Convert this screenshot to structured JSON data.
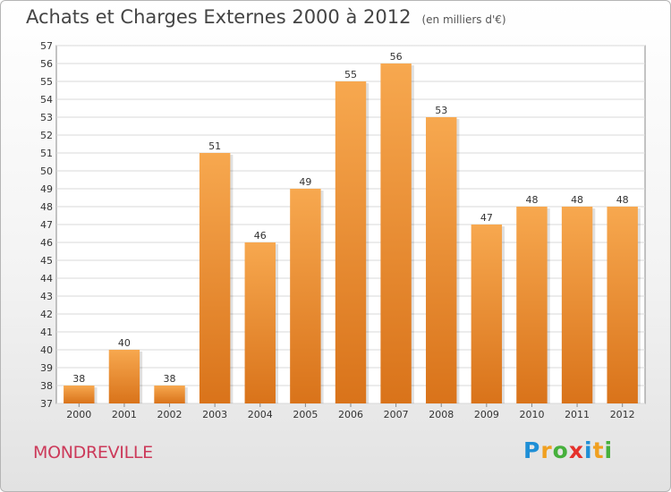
{
  "chart_data": {
    "type": "bar",
    "title": "Achats et Charges Externes 2000 à 2012",
    "subtitle": "(en milliers d'€)",
    "categories": [
      "2000",
      "2001",
      "2002",
      "2003",
      "2004",
      "2005",
      "2006",
      "2007",
      "2008",
      "2009",
      "2010",
      "2011",
      "2012"
    ],
    "values": [
      38,
      40,
      38,
      51,
      46,
      49,
      55,
      56,
      53,
      47,
      48,
      48,
      48
    ],
    "ylim": [
      37,
      57
    ],
    "yticks": [
      37,
      38,
      39,
      40,
      41,
      42,
      43,
      44,
      45,
      46,
      47,
      48,
      49,
      50,
      51,
      52,
      53,
      54,
      55,
      56,
      57
    ],
    "grid": true,
    "bar_color_top": "#f7a84f",
    "bar_color_bottom": "#d9731a"
  },
  "footer": {
    "commune": "MONDREVILLE",
    "logo_text": "Proxiti",
    "logo_colors": [
      "#1f8fd6",
      "#f0a020",
      "#46b03c",
      "#e5312b",
      "#1f8fd6",
      "#f0a020",
      "#46b03c"
    ]
  }
}
